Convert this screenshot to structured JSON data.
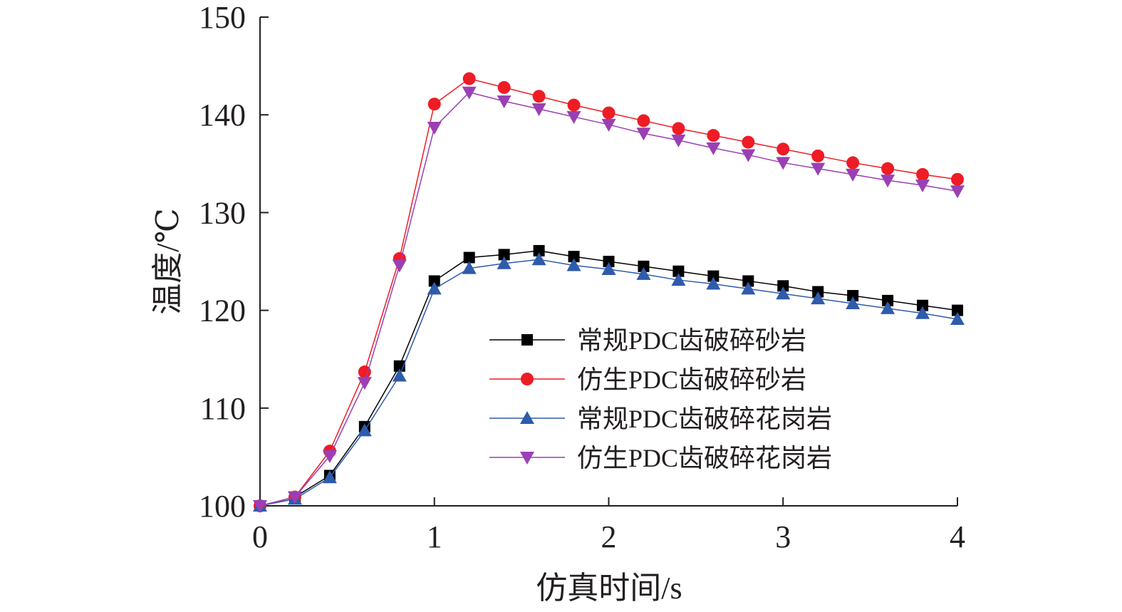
{
  "chart_data": {
    "type": "line",
    "title": "",
    "xlabel": "仿真时间/s",
    "ylabel": "温度/℃",
    "xlim": [
      0,
      4
    ],
    "ylim": [
      100,
      150
    ],
    "xticks": [
      "0",
      "1",
      "2",
      "3",
      "4"
    ],
    "yticks": [
      "100",
      "110",
      "120",
      "130",
      "140",
      "150"
    ],
    "grid": false,
    "legend_position": "center-right",
    "x": [
      0,
      0.2,
      0.4,
      0.6,
      0.8,
      1.0,
      1.2,
      1.4,
      1.6,
      1.8,
      2.0,
      2.2,
      2.4,
      2.6,
      2.8,
      3.0,
      3.2,
      3.4,
      3.6,
      3.8,
      4.0
    ],
    "series": [
      {
        "name": "常规PDC齿破碎砂岩",
        "color": "#000000",
        "marker": "square",
        "values": [
          100,
          100.9,
          103.1,
          108.1,
          114.3,
          123.0,
          125.4,
          125.7,
          126.1,
          125.5,
          125.0,
          124.5,
          124.0,
          123.5,
          123.0,
          122.5,
          121.9,
          121.5,
          121.0,
          120.5,
          120.0
        ]
      },
      {
        "name": "仿生PDC齿破碎砂岩",
        "color": "#ee1c25",
        "marker": "circle",
        "values": [
          100,
          100.9,
          105.6,
          113.7,
          125.3,
          141.1,
          143.7,
          142.8,
          141.9,
          141.0,
          140.2,
          139.4,
          138.6,
          137.9,
          137.2,
          136.5,
          135.8,
          135.1,
          134.5,
          133.9,
          133.4
        ]
      },
      {
        "name": "常规PDC齿破碎花岗岩",
        "color": "#2e5bab",
        "marker": "triangle-up",
        "values": [
          100,
          100.7,
          102.9,
          107.7,
          113.3,
          122.2,
          124.3,
          124.8,
          125.2,
          124.6,
          124.2,
          123.7,
          123.1,
          122.7,
          122.2,
          121.7,
          121.2,
          120.7,
          120.2,
          119.7,
          119.1
        ]
      },
      {
        "name": "仿生PDC齿破碎花岗岩",
        "color": "#9b3fb4",
        "marker": "triangle-down",
        "values": [
          100,
          100.9,
          105.1,
          112.6,
          124.6,
          138.7,
          142.3,
          141.4,
          140.6,
          139.8,
          139.0,
          138.1,
          137.4,
          136.6,
          135.9,
          135.1,
          134.5,
          133.9,
          133.3,
          132.8,
          132.2
        ]
      }
    ]
  }
}
